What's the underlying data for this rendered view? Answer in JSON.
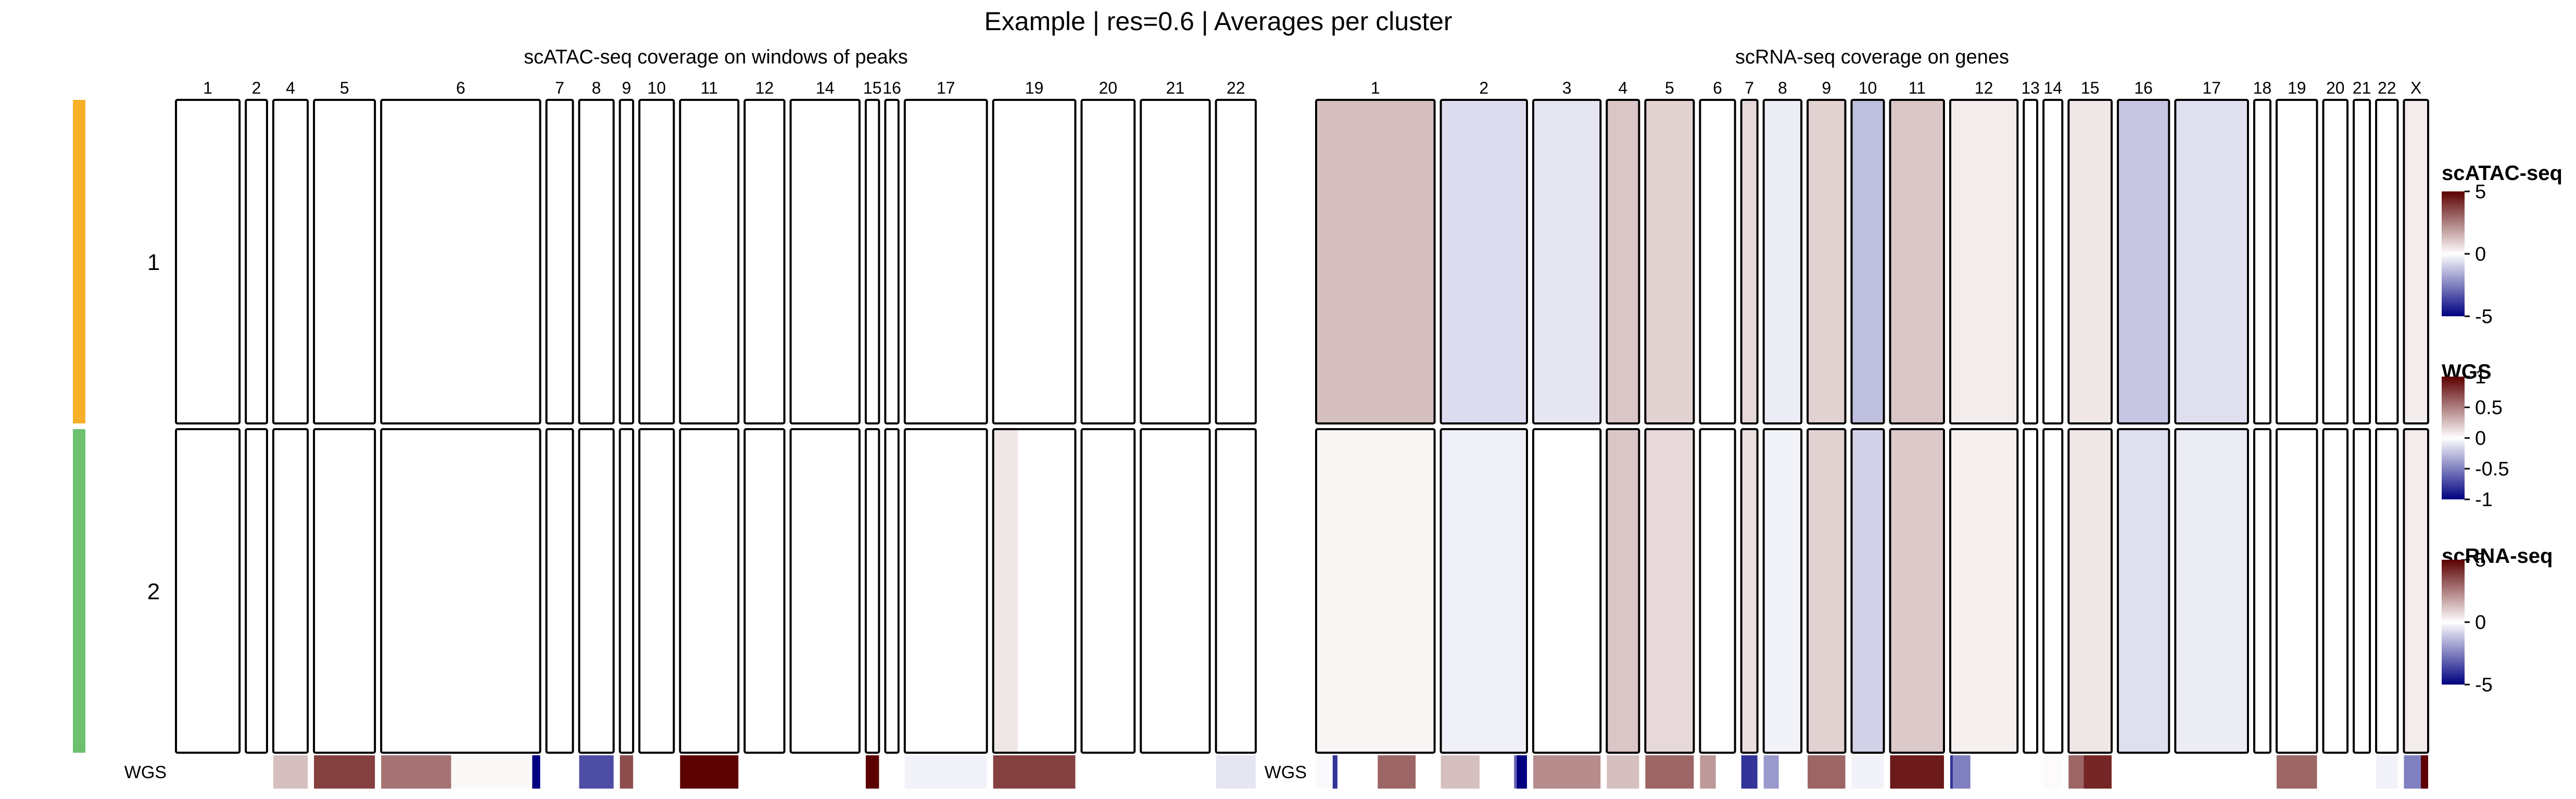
{
  "figure": {
    "title": "Example | res=0.6 | Averages per cluster"
  },
  "chart_data": [
    {
      "type": "heatmap",
      "title": "scATAC-seq coverage on windows of peaks",
      "rows": [
        "1",
        "2"
      ],
      "row_colors": [
        "#F5B027",
        "#6CC070"
      ],
      "chromosomes": [
        "1",
        "2",
        "4",
        "5",
        "6",
        "7",
        "8",
        "9",
        "10",
        "11",
        "12",
        "14",
        "15",
        "16",
        "17",
        "19",
        "20",
        "21",
        "22"
      ],
      "chrom_weights": [
        12,
        4,
        6.5,
        11.5,
        30,
        5,
        6.5,
        2.5,
        6.5,
        11,
        7.5,
        13,
        2.5,
        2.5,
        15.5,
        15.5,
        10,
        13,
        7.5
      ],
      "row_label_wgs": "WGS",
      "wgs_segments": [
        {
          "chrom": "4",
          "value": 0.25
        },
        {
          "chrom": "5",
          "value": 0.75
        },
        {
          "chrom": "6",
          "from": 0.0,
          "to": 0.44,
          "value": 0.55
        },
        {
          "chrom": "6",
          "from": 0.44,
          "to": 0.95,
          "value": 0.03
        },
        {
          "chrom": "6",
          "from": 0.95,
          "to": 1.0,
          "value": -1.0
        },
        {
          "chrom": "8",
          "value": -0.7
        },
        {
          "chrom": "9",
          "value": 0.7
        },
        {
          "chrom": "11",
          "value": 1.0
        },
        {
          "chrom": "15",
          "value": 1.0
        },
        {
          "chrom": "17",
          "value": -0.05
        },
        {
          "chrom": "19",
          "value": 0.75
        },
        {
          "chrom": "22",
          "value": -0.1
        }
      ],
      "tile_signals": [
        {
          "row": "2",
          "chrom": "19",
          "from": 0.0,
          "to": 0.3,
          "value": 0.4
        }
      ]
    },
    {
      "type": "heatmap",
      "title": "scRNA-seq coverage on genes",
      "rows": [
        "1",
        "2"
      ],
      "chromosomes": [
        "1",
        "2",
        "3",
        "4",
        "5",
        "6",
        "7",
        "8",
        "9",
        "10",
        "11",
        "12",
        "13",
        "14",
        "15",
        "16",
        "17",
        "18",
        "19",
        "20",
        "21",
        "22",
        "X"
      ],
      "chrom_weights": [
        22,
        16,
        12.5,
        6,
        9,
        6.5,
        3,
        7,
        7,
        6,
        10,
        12.5,
        2.5,
        3.5,
        8,
        9.5,
        13.5,
        3,
        7.5,
        4.5,
        3,
        4,
        4.5
      ],
      "row_label_wgs": "WGS",
      "wgs_segments": [
        {
          "chrom": "1",
          "from": 0.0,
          "to": 0.14,
          "value": -0.02
        },
        {
          "chrom": "1",
          "from": 0.14,
          "to": 0.18,
          "value": -0.8
        },
        {
          "chrom": "1",
          "from": 0.52,
          "to": 0.84,
          "value": 0.6
        },
        {
          "chrom": "2",
          "from": 0.0,
          "to": 0.45,
          "value": 0.25
        },
        {
          "chrom": "2",
          "from": 0.85,
          "to": 0.88,
          "value": -0.6
        },
        {
          "chrom": "2",
          "from": 0.88,
          "to": 1.0,
          "value": -1.0
        },
        {
          "chrom": "3",
          "value": 0.45
        },
        {
          "chrom": "4",
          "value": 0.25
        },
        {
          "chrom": "5",
          "value": 0.6
        },
        {
          "chrom": "6",
          "from": 0.0,
          "to": 0.45,
          "value": 0.4
        },
        {
          "chrom": "7",
          "value": -0.8
        },
        {
          "chrom": "8",
          "from": 0.0,
          "to": 0.4,
          "value": -0.4
        },
        {
          "chrom": "9",
          "value": 0.6
        },
        {
          "chrom": "10",
          "value": -0.05
        },
        {
          "chrom": "11",
          "value": 0.9
        },
        {
          "chrom": "12",
          "from": 0.0,
          "to": 0.04,
          "value": -0.8
        },
        {
          "chrom": "12",
          "from": 0.04,
          "to": 0.3,
          "value": -0.5
        },
        {
          "chrom": "14",
          "value": 0.02
        },
        {
          "chrom": "15",
          "from": 0.0,
          "to": 0.35,
          "value": 0.6
        },
        {
          "chrom": "15",
          "from": 0.35,
          "to": 1.0,
          "value": 0.85
        },
        {
          "chrom": "19",
          "value": 0.6
        },
        {
          "chrom": "22",
          "value": -0.05
        },
        {
          "chrom": "X",
          "from": 0.0,
          "to": 0.7,
          "value": -0.5
        },
        {
          "chrom": "X",
          "from": 0.7,
          "to": 1.0,
          "value": 1.0
        }
      ],
      "tile_signals": [
        {
          "row": "1",
          "chrom": "1",
          "value": 1.0
        },
        {
          "row": "1",
          "chrom": "2",
          "value": -0.55
        },
        {
          "row": "1",
          "chrom": "3",
          "value": -0.4
        },
        {
          "row": "1",
          "chrom": "4",
          "value": 0.9
        },
        {
          "row": "1",
          "chrom": "5",
          "value": 0.7
        },
        {
          "row": "1",
          "chrom": "7",
          "value": 0.6
        },
        {
          "row": "1",
          "chrom": "8",
          "value": -0.3
        },
        {
          "row": "1",
          "chrom": "9",
          "value": 0.7
        },
        {
          "row": "1",
          "chrom": "10",
          "value": -1.0
        },
        {
          "row": "1",
          "chrom": "11",
          "value": 0.9
        },
        {
          "row": "1",
          "chrom": "12",
          "value": 0.3
        },
        {
          "row": "1",
          "chrom": "15",
          "value": 0.4
        },
        {
          "row": "1",
          "chrom": "16",
          "value": -0.9
        },
        {
          "row": "1",
          "chrom": "17",
          "value": -0.5
        },
        {
          "row": "1",
          "chrom": "X",
          "value": 0.3
        },
        {
          "row": "2",
          "chrom": "1",
          "value": 0.15
        },
        {
          "row": "2",
          "chrom": "2",
          "value": -0.25
        },
        {
          "row": "2",
          "chrom": "4",
          "value": 0.9
        },
        {
          "row": "2",
          "chrom": "5",
          "value": 0.6
        },
        {
          "row": "2",
          "chrom": "7",
          "value": 0.5
        },
        {
          "row": "2",
          "chrom": "8",
          "value": -0.2
        },
        {
          "row": "2",
          "chrom": "9",
          "value": 0.7
        },
        {
          "row": "2",
          "chrom": "10",
          "value": -0.7
        },
        {
          "row": "2",
          "chrom": "11",
          "value": 0.85
        },
        {
          "row": "2",
          "chrom": "12",
          "value": 0.25
        },
        {
          "row": "2",
          "chrom": "15",
          "value": 0.4
        },
        {
          "row": "2",
          "chrom": "16",
          "value": -0.5
        },
        {
          "row": "2",
          "chrom": "17",
          "value": -0.3
        },
        {
          "row": "2",
          "chrom": "X",
          "value": 0.3
        }
      ]
    }
  ],
  "legends": [
    {
      "title": "scATAC-seq",
      "ticks": [
        "5",
        "0",
        "-5"
      ]
    },
    {
      "title": "WGS",
      "ticks": [
        "1",
        "0.5",
        "0",
        "-0.5",
        "-1"
      ]
    },
    {
      "title": "scRNA-seq",
      "ticks": [
        "5",
        "0",
        "-5"
      ]
    }
  ],
  "colors": {
    "high": "#5C0000",
    "mid": "#FFFFFF",
    "low": "#000080"
  }
}
